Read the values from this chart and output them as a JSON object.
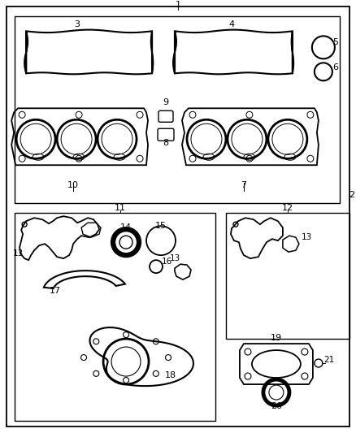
{
  "background": "#ffffff",
  "fig_width": 4.38,
  "fig_height": 5.33
}
